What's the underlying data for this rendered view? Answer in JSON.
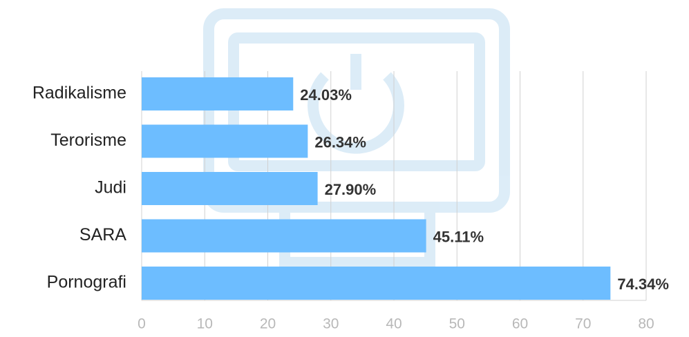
{
  "chart_data": {
    "type": "bar",
    "orientation": "horizontal",
    "categories": [
      "Radikalisme",
      "Terorisme",
      "Judi",
      "SARA",
      "Pornografi"
    ],
    "values": [
      24.03,
      26.34,
      27.9,
      45.11,
      74.34
    ],
    "value_labels": [
      "24.03%",
      "26.34%",
      "27.90%",
      "45.11%",
      "74.34%"
    ],
    "color": "#6dbdff",
    "xlim": [
      0,
      80
    ],
    "xticks": [
      0,
      10,
      20,
      30,
      40,
      50,
      60,
      70,
      80
    ],
    "grid": true
  }
}
